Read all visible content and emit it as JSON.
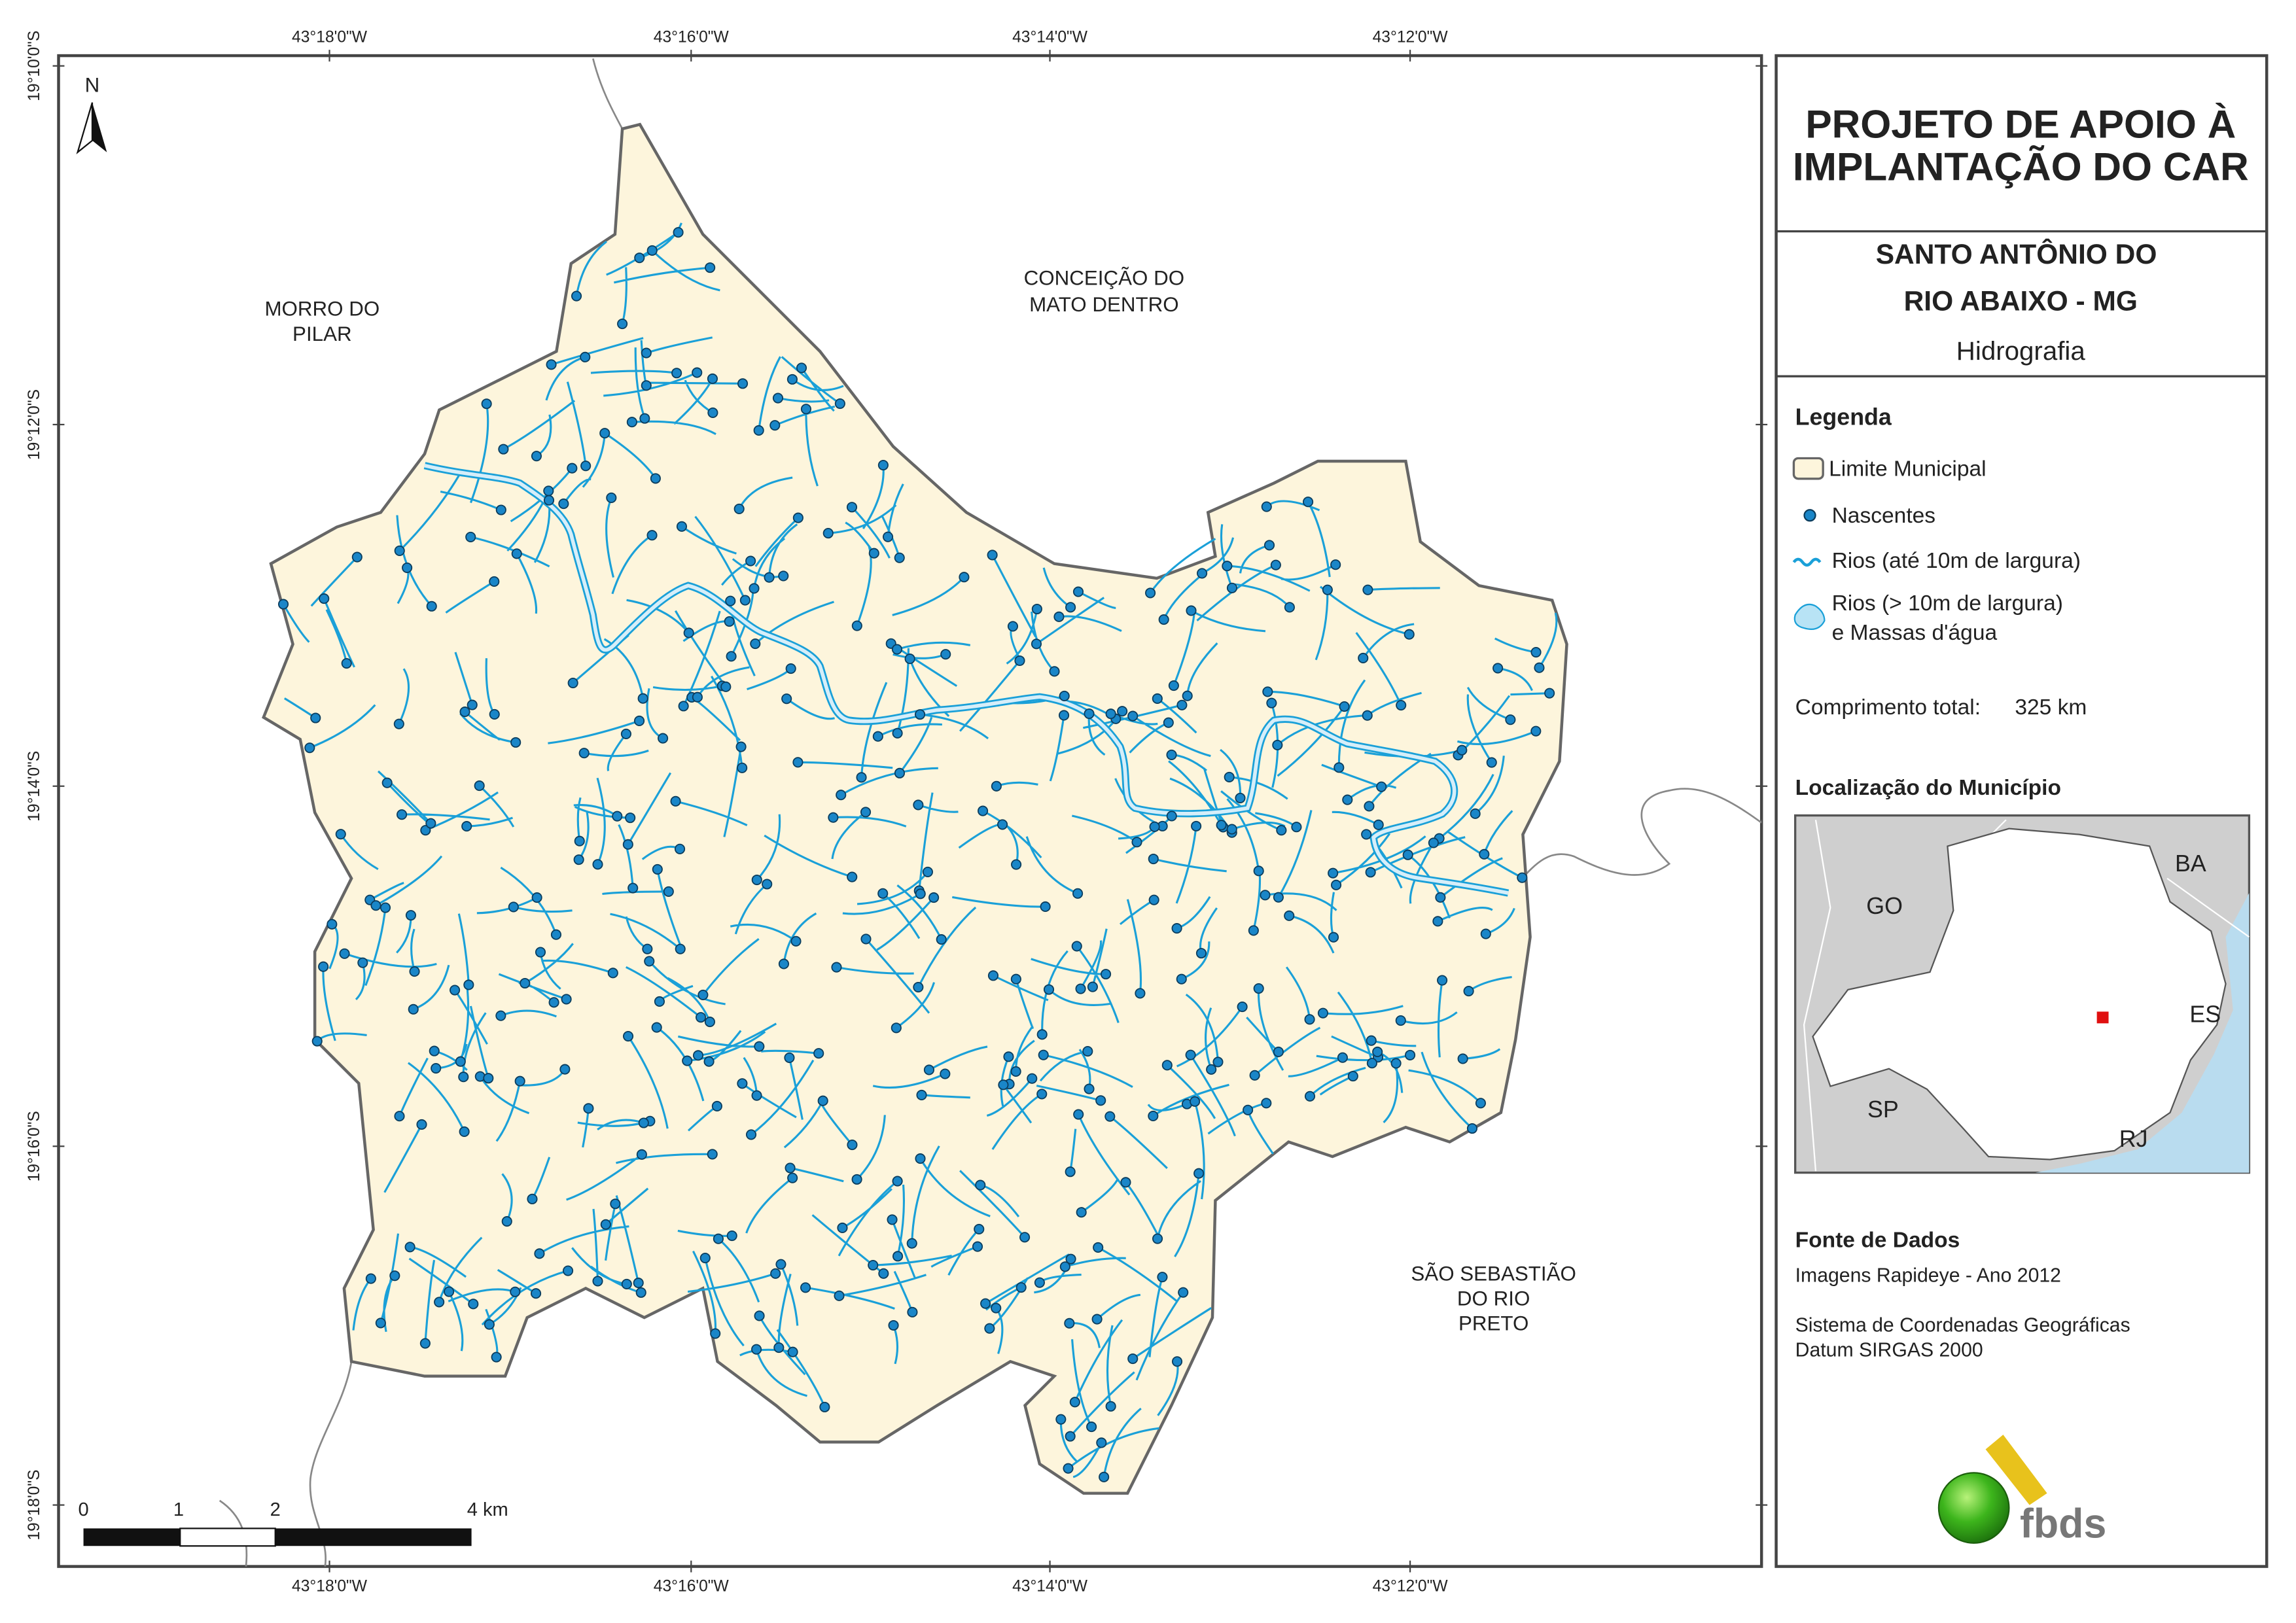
{
  "map": {
    "north": "N",
    "longitude_labels": [
      "43°18'0\"W",
      "43°16'0\"W",
      "43°14'0\"W",
      "43°12'0\"W"
    ],
    "latitude_labels": [
      "19°10'0\"S",
      "19°12'0\"S",
      "19°14'0\"S",
      "19°16'0\"S",
      "19°18'0\"S"
    ],
    "neighbors": [
      {
        "lines": [
          "MORRO DO",
          "PILAR"
        ]
      },
      {
        "lines": [
          "CONCEIÇÃO DO",
          "MATO DENTRO"
        ]
      },
      {
        "lines": [
          "SÃO SEBASTIÃO",
          "DO RIO",
          "PRETO"
        ]
      }
    ],
    "scale_labels": [
      "0",
      "1",
      "2",
      "4 km"
    ]
  },
  "panel": {
    "title_lines": [
      "PROJETO DE APOIO À",
      "IMPLANTAÇÃO DO CAR"
    ],
    "municipality_lines": [
      "SANTO ANTÔNIO DO",
      "RIO ABAIXO - MG"
    ],
    "theme": "Hidrografia",
    "legend_title": "Legenda",
    "legend_items": [
      "Limite Municipal",
      "Nascentes",
      "Rios (até 10m de largura)"
    ],
    "legend_wide_rivers": [
      "Rios (> 10m de largura)",
      "e Massas d'água"
    ],
    "total_length_label": "Comprimento total:",
    "total_length": "325 km",
    "location_title": "Localização do Município",
    "inset_labels": [
      "BA",
      "GO",
      "ES",
      "SP",
      "RJ"
    ],
    "sources_title": "Fonte de Dados",
    "sources": [
      "Imagens Rapideye - Ano 2012",
      "Sistema de Coordenadas Geográficas",
      "Datum SIRGAS 2000"
    ],
    "logo": "fbds"
  }
}
